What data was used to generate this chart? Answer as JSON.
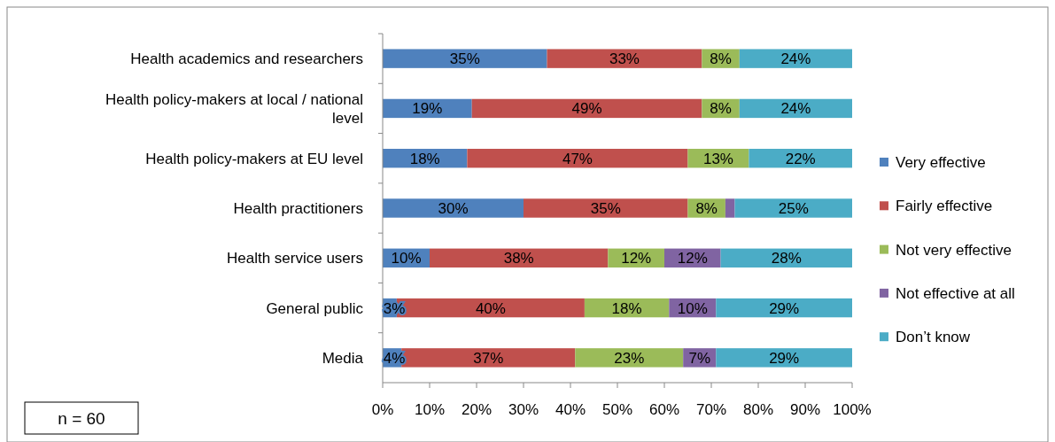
{
  "chart_data": {
    "type": "bar",
    "orientation": "horizontal",
    "stacked": true,
    "categories": [
      "Health academics and researchers",
      "Health policy-makers at local / national level",
      "Health policy-makers at EU level",
      "Health practitioners",
      "Health service users",
      "General public",
      "Media"
    ],
    "series": [
      {
        "name": "Very effective",
        "color": "#4f81bd",
        "values": [
          35,
          19,
          18,
          30,
          10,
          3,
          4
        ],
        "value_labels": [
          "35%",
          "19%",
          "18%",
          "30%",
          "10%",
          "3%",
          "4%"
        ]
      },
      {
        "name": "Fairly effective",
        "color": "#c0504d",
        "values": [
          33,
          49,
          47,
          35,
          38,
          40,
          37
        ],
        "value_labels": [
          "33%",
          "49%",
          "47%",
          "35%",
          "38%",
          "40%",
          "37%"
        ]
      },
      {
        "name": "Not very effective",
        "color": "#9bbb59",
        "values": [
          8,
          8,
          13,
          8,
          12,
          18,
          23
        ],
        "value_labels": [
          "8%",
          "8%",
          "13%",
          "8%",
          "12%",
          "18%",
          "23%"
        ]
      },
      {
        "name": "Not effective at all",
        "color": "#8064a2",
        "values": [
          0,
          0,
          0,
          2,
          12,
          10,
          7
        ],
        "value_labels": [
          null,
          null,
          null,
          null,
          "12%",
          "10%",
          "7%"
        ]
      },
      {
        "name": "Don’t know",
        "color": "#4bacc6",
        "values": [
          24,
          24,
          22,
          25,
          28,
          29,
          29
        ],
        "value_labels": [
          "24%",
          "24%",
          "22%",
          "25%",
          "28%",
          "29%",
          "29%"
        ]
      }
    ],
    "xlim": [
      0,
      100
    ],
    "xticks": [
      {
        "value": 0,
        "label": "0%"
      },
      {
        "value": 10,
        "label": "10%"
      },
      {
        "value": 20,
        "label": "20%"
      },
      {
        "value": 30,
        "label": "30%"
      },
      {
        "value": 40,
        "label": "40%"
      },
      {
        "value": 50,
        "label": "50%"
      },
      {
        "value": 60,
        "label": "60%"
      },
      {
        "value": 70,
        "label": "70%"
      },
      {
        "value": 80,
        "label": "80%"
      },
      {
        "value": 90,
        "label": "90%"
      },
      {
        "value": 100,
        "label": "100%"
      }
    ],
    "legend": "right",
    "grid": false,
    "annotations": [
      "n = 60"
    ]
  }
}
